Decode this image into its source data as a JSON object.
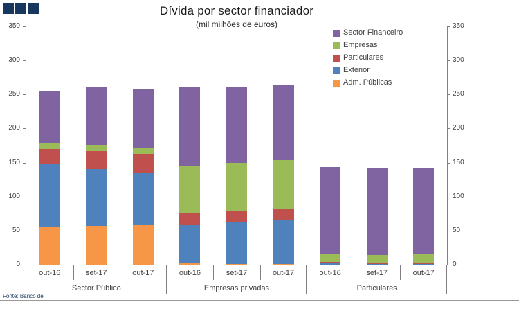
{
  "logo": {
    "square_color": "#17375E",
    "square_count": 3
  },
  "footer": {
    "source": "Fonte: Banco de"
  },
  "chart_data": {
    "type": "bar",
    "stacked": true,
    "title": "Dívida por sector financiador",
    "subtitle": "(mil milhões de euros)",
    "ylim": [
      0,
      350
    ],
    "ytick_step": 50,
    "grid": false,
    "legend_position": "top-right",
    "axis_color": "#808080",
    "label_color": "#404040",
    "groups": [
      "Sector Público",
      "Empresas privadas",
      "Particulares"
    ],
    "categories": [
      "out-16",
      "set-17",
      "out-17"
    ],
    "series": [
      {
        "name": "Adm. Públicas",
        "color": "#F79646",
        "values": [
          55,
          57,
          58,
          2,
          1,
          1,
          0,
          0,
          0
        ]
      },
      {
        "name": "Exterior",
        "color": "#4F81BD",
        "values": [
          93,
          83,
          77,
          56,
          61,
          64,
          2,
          1,
          1
        ]
      },
      {
        "name": "Particulares",
        "color": "#C0504D",
        "values": [
          22,
          27,
          27,
          17,
          17,
          17,
          2,
          2,
          2
        ]
      },
      {
        "name": "Empresas",
        "color": "#9BBB59",
        "values": [
          8,
          8,
          10,
          70,
          71,
          72,
          11,
          11,
          12
        ]
      },
      {
        "name": "Sector Financeiro",
        "color": "#8064A2",
        "values": [
          77,
          85,
          85,
          115,
          111,
          110,
          128,
          127,
          126
        ]
      }
    ]
  }
}
